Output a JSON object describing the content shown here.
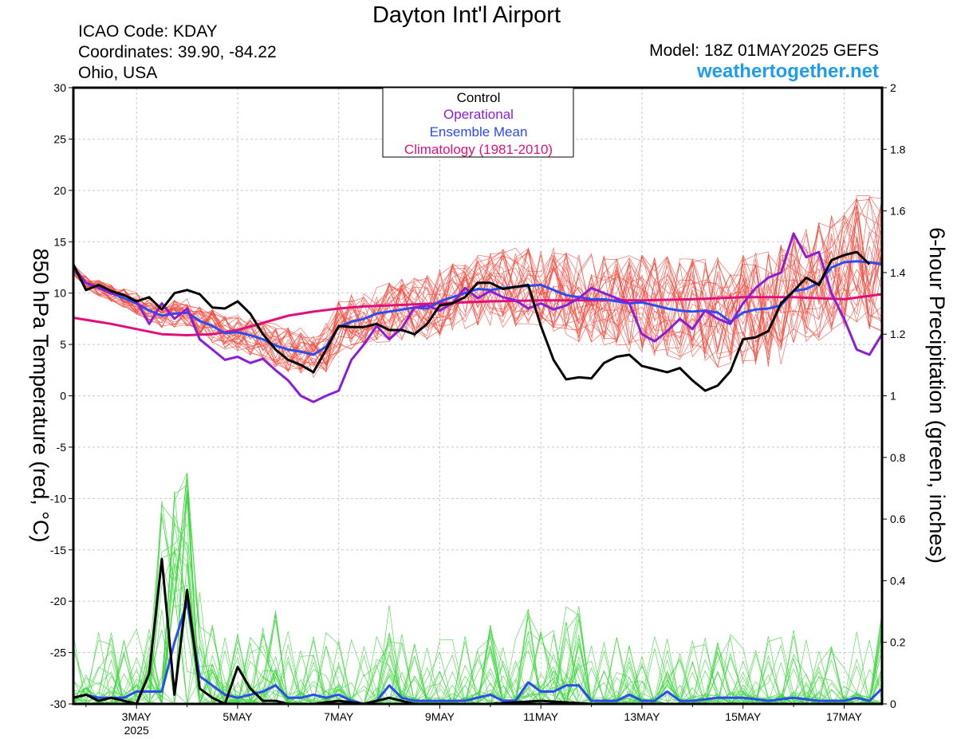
{
  "header": {
    "title": "Dayton Int'l Airport",
    "icao": "ICAO Code: KDAY",
    "coordinates": "Coordinates: 39.90, -84.22",
    "region": "Ohio, USA",
    "model": "Model: 18Z 01MAY2025 GEFS",
    "site": "weathertogether.net"
  },
  "chart_data": {
    "type": "line",
    "y_left_label": "850 hPa Temperature (red, °C)",
    "y_right_label": "6-hour Precipitation (green, inches)",
    "y_left_range": [
      -30,
      30
    ],
    "y_left_ticks": [
      "30",
      "25",
      "20",
      "15",
      "10",
      "5",
      "0",
      "-5",
      "-10",
      "-15",
      "-20",
      "-25",
      "-30"
    ],
    "y_right_range": [
      0,
      2
    ],
    "y_right_ticks": [
      "2",
      "1.8",
      "1.6",
      "1.4",
      "1.2",
      "1",
      "0.8",
      "0.6",
      "0.4",
      "0.2",
      "0"
    ],
    "x_range_days": [
      1.75,
      17.75
    ],
    "x_ticks": [
      {
        "day": 3,
        "label": "3MAY",
        "sub": "2025"
      },
      {
        "day": 5,
        "label": "5MAY"
      },
      {
        "day": 7,
        "label": "7MAY"
      },
      {
        "day": 9,
        "label": "9MAY"
      },
      {
        "day": 11,
        "label": "11MAY"
      },
      {
        "day": 13,
        "label": "13MAY"
      },
      {
        "day": 15,
        "label": "15MAY"
      },
      {
        "day": 17,
        "label": "17MAY"
      }
    ],
    "legend": {
      "placement": "top-center",
      "entries": [
        {
          "label": "Control",
          "color": "#000000"
        },
        {
          "label": "Operational",
          "color": "#8a1ed6"
        },
        {
          "label": "Ensemble Mean",
          "color": "#2a4cf0"
        },
        {
          "label": "Climatology (1981-2010)",
          "color": "#e0107a"
        }
      ]
    },
    "colors": {
      "members_temp": "#f0483c",
      "members_precip": "#3ed63e",
      "control": "#000000",
      "operational": "#8a1ed6",
      "mean": "#2a4cf0",
      "climatology": "#e0107a"
    },
    "temperature_series": {
      "control": [
        [
          1.75,
          12.8
        ],
        [
          2,
          10.3
        ],
        [
          2.25,
          10.8
        ],
        [
          2.5,
          10.2
        ],
        [
          2.75,
          9.8
        ],
        [
          3,
          9.2
        ],
        [
          3.25,
          9.6
        ],
        [
          3.5,
          8.4
        ],
        [
          3.75,
          10
        ],
        [
          4,
          10.3
        ],
        [
          4.25,
          9.9
        ],
        [
          4.5,
          8.6
        ],
        [
          4.75,
          8.5
        ],
        [
          5,
          9.2
        ],
        [
          5.25,
          8
        ],
        [
          5.5,
          6
        ],
        [
          5.75,
          4.5
        ],
        [
          6,
          3.5
        ],
        [
          6.25,
          3
        ],
        [
          6.5,
          2.3
        ],
        [
          6.75,
          4.5
        ],
        [
          7,
          6.8
        ],
        [
          7.25,
          6.7
        ],
        [
          7.5,
          6.7
        ],
        [
          7.75,
          7
        ],
        [
          8,
          6.4
        ],
        [
          8.25,
          6.4
        ],
        [
          8.5,
          6
        ],
        [
          8.75,
          7
        ],
        [
          9,
          8.8
        ],
        [
          9.25,
          9
        ],
        [
          9.5,
          9.6
        ],
        [
          9.75,
          11
        ],
        [
          10,
          11
        ],
        [
          10.25,
          10.4
        ],
        [
          10.5,
          10.6
        ],
        [
          10.75,
          10.8
        ],
        [
          11,
          6.8
        ],
        [
          11.25,
          3.5
        ],
        [
          11.5,
          1.6
        ],
        [
          11.75,
          1.8
        ],
        [
          12,
          1.7
        ],
        [
          12.25,
          3.2
        ],
        [
          12.5,
          3.8
        ],
        [
          12.75,
          4
        ],
        [
          13,
          2.9
        ],
        [
          13.25,
          2.6
        ],
        [
          13.5,
          2.3
        ],
        [
          13.75,
          2.7
        ],
        [
          14,
          1.5
        ],
        [
          14.25,
          0.5
        ],
        [
          14.5,
          1
        ],
        [
          14.75,
          2.4
        ],
        [
          15,
          5.5
        ],
        [
          15.25,
          5.7
        ],
        [
          15.5,
          6.3
        ],
        [
          15.75,
          9
        ],
        [
          16,
          10.2
        ],
        [
          16.25,
          11.5
        ],
        [
          16.5,
          10.8
        ],
        [
          16.75,
          13.2
        ],
        [
          17,
          13.7
        ],
        [
          17.25,
          14
        ],
        [
          17.5,
          12.8
        ]
      ],
      "operational": [
        [
          1.75,
          12.5
        ],
        [
          2,
          11
        ],
        [
          2.25,
          10.5
        ],
        [
          2.5,
          10
        ],
        [
          2.75,
          9.8
        ],
        [
          3,
          9.2
        ],
        [
          3.25,
          7
        ],
        [
          3.5,
          9
        ],
        [
          3.75,
          7.5
        ],
        [
          4,
          8.5
        ],
        [
          4.25,
          5.5
        ],
        [
          4.5,
          4.5
        ],
        [
          4.75,
          3.5
        ],
        [
          5,
          3.8
        ],
        [
          5.25,
          3.2
        ],
        [
          5.5,
          3.6
        ],
        [
          5.75,
          2.5
        ],
        [
          6,
          1.5
        ],
        [
          6.25,
          0
        ],
        [
          6.5,
          -0.6
        ],
        [
          6.75,
          0
        ],
        [
          7,
          0.5
        ],
        [
          7.25,
          3.5
        ],
        [
          7.5,
          5
        ],
        [
          7.75,
          6.8
        ],
        [
          8,
          5.5
        ],
        [
          8.25,
          6.6
        ],
        [
          8.5,
          8.6
        ],
        [
          8.75,
          8.8
        ],
        [
          9,
          8.3
        ],
        [
          9.25,
          9
        ],
        [
          9.5,
          10.5
        ],
        [
          9.75,
          9.5
        ],
        [
          10,
          10.2
        ],
        [
          10.25,
          9.6
        ],
        [
          10.5,
          9.3
        ],
        [
          10.75,
          8.5
        ],
        [
          11,
          9
        ],
        [
          11.25,
          8.4
        ],
        [
          11.5,
          8.8
        ],
        [
          11.75,
          9.5
        ],
        [
          12,
          10.5
        ],
        [
          12.25,
          10
        ],
        [
          12.5,
          9.5
        ],
        [
          12.75,
          9
        ],
        [
          13,
          6
        ],
        [
          13.25,
          5.3
        ],
        [
          13.5,
          6.3
        ],
        [
          13.75,
          7.5
        ],
        [
          14,
          6.5
        ],
        [
          14.25,
          8.3
        ],
        [
          14.5,
          7.5
        ],
        [
          14.75,
          7
        ],
        [
          15,
          9
        ],
        [
          15.25,
          10.5
        ],
        [
          15.5,
          11.5
        ],
        [
          15.75,
          12
        ],
        [
          16,
          15.8
        ],
        [
          16.25,
          13.5
        ],
        [
          16.5,
          14
        ],
        [
          16.75,
          10
        ],
        [
          17,
          7.5
        ],
        [
          17.25,
          4.5
        ],
        [
          17.5,
          4
        ],
        [
          17.75,
          6
        ]
      ],
      "mean": [
        [
          1.75,
          12.3
        ],
        [
          2,
          11
        ],
        [
          2.25,
          10.5
        ],
        [
          2.5,
          10
        ],
        [
          2.75,
          9.5
        ],
        [
          3,
          9
        ],
        [
          3.25,
          8.3
        ],
        [
          3.5,
          7.8
        ],
        [
          3.75,
          8
        ],
        [
          4,
          8.1
        ],
        [
          4.25,
          7.3
        ],
        [
          4.5,
          6.8
        ],
        [
          4.75,
          6.1
        ],
        [
          5,
          6.2
        ],
        [
          5.25,
          5.9
        ],
        [
          5.5,
          5.5
        ],
        [
          5.75,
          4.9
        ],
        [
          6,
          4.5
        ],
        [
          6.25,
          4.3
        ],
        [
          6.5,
          4
        ],
        [
          6.75,
          4.8
        ],
        [
          7,
          6.7
        ],
        [
          7.25,
          7.2
        ],
        [
          7.5,
          7.5
        ],
        [
          7.75,
          8
        ],
        [
          8,
          8.2
        ],
        [
          8.25,
          8.4
        ],
        [
          8.5,
          8.6
        ],
        [
          8.75,
          8.5
        ],
        [
          9,
          9.2
        ],
        [
          9.25,
          9.6
        ],
        [
          9.5,
          10
        ],
        [
          9.75,
          10.4
        ],
        [
          10,
          10.3
        ],
        [
          10.25,
          10.5
        ],
        [
          10.5,
          10.6
        ],
        [
          10.75,
          10.7
        ],
        [
          11,
          10.8
        ],
        [
          11.25,
          10.3
        ],
        [
          11.5,
          9.8
        ],
        [
          11.75,
          9.6
        ],
        [
          12,
          9.4
        ],
        [
          12.25,
          9.4
        ],
        [
          12.5,
          9.2
        ],
        [
          12.75,
          9
        ],
        [
          13,
          9.1
        ],
        [
          13.25,
          8.8
        ],
        [
          13.5,
          8.5
        ],
        [
          13.75,
          8.3
        ],
        [
          14,
          8.2
        ],
        [
          14.25,
          8.3
        ],
        [
          14.5,
          8.1
        ],
        [
          14.75,
          7.2
        ],
        [
          15,
          8.1
        ],
        [
          15.25,
          8.4
        ],
        [
          15.5,
          8.5
        ],
        [
          15.75,
          8.8
        ],
        [
          16,
          10.2
        ],
        [
          16.25,
          10.4
        ],
        [
          16.5,
          11
        ],
        [
          16.75,
          12.5
        ],
        [
          17,
          13
        ],
        [
          17.25,
          13.1
        ],
        [
          17.5,
          13
        ],
        [
          17.75,
          12.8
        ]
      ],
      "climatology": [
        [
          1.75,
          7.6
        ],
        [
          2.5,
          7
        ],
        [
          3,
          6.5
        ],
        [
          3.5,
          6
        ],
        [
          4,
          5.9
        ],
        [
          4.5,
          6
        ],
        [
          5,
          6.4
        ],
        [
          5.5,
          7.1
        ],
        [
          6,
          7.8
        ],
        [
          6.5,
          8.2
        ],
        [
          7,
          8.5
        ],
        [
          7.5,
          8.7
        ],
        [
          8,
          8.8
        ],
        [
          8.5,
          8.9
        ],
        [
          9,
          9
        ],
        [
          10,
          9.2
        ],
        [
          11,
          9.3
        ],
        [
          12,
          9.3
        ],
        [
          13,
          9.3
        ],
        [
          14,
          9.4
        ],
        [
          15,
          9.6
        ],
        [
          16,
          9.6
        ],
        [
          16.5,
          9.5
        ],
        [
          17,
          9.4
        ],
        [
          17.75,
          9.9
        ]
      ]
    },
    "precip_series": {
      "control": [
        [
          1.75,
          0.02
        ],
        [
          2,
          0.03
        ],
        [
          2.25,
          0.01
        ],
        [
          2.5,
          0.02
        ],
        [
          2.75,
          0.01
        ],
        [
          3,
          0
        ],
        [
          3.25,
          0.1
        ],
        [
          3.5,
          0.47
        ],
        [
          3.75,
          0.03
        ],
        [
          4,
          0.37
        ],
        [
          4.25,
          0.05
        ],
        [
          4.5,
          0.02
        ],
        [
          4.75,
          0
        ],
        [
          5,
          0.12
        ],
        [
          5.25,
          0.05
        ],
        [
          5.5,
          0.01
        ],
        [
          5.75,
          0.01
        ],
        [
          6,
          0
        ],
        [
          6.5,
          0
        ],
        [
          7,
          0.01
        ],
        [
          7.5,
          0
        ],
        [
          8,
          0.02
        ],
        [
          8.5,
          0
        ],
        [
          9,
          0
        ],
        [
          10,
          0
        ],
        [
          11,
          0.01
        ],
        [
          12,
          0
        ],
        [
          13,
          0
        ],
        [
          14,
          0
        ],
        [
          15,
          0
        ],
        [
          16,
          0
        ],
        [
          17,
          0
        ],
        [
          17.75,
          0
        ]
      ],
      "mean": [
        [
          1.75,
          0.02
        ],
        [
          2,
          0.03
        ],
        [
          2.25,
          0.02
        ],
        [
          2.5,
          0.02
        ],
        [
          2.75,
          0.02
        ],
        [
          3,
          0.04
        ],
        [
          3.25,
          0.04
        ],
        [
          3.5,
          0.04
        ],
        [
          3.75,
          0.2
        ],
        [
          4,
          0.33
        ],
        [
          4.25,
          0.09
        ],
        [
          4.5,
          0.06
        ],
        [
          4.75,
          0.03
        ],
        [
          5,
          0.02
        ],
        [
          5.25,
          0.03
        ],
        [
          5.5,
          0.04
        ],
        [
          5.75,
          0.06
        ],
        [
          6,
          0.02
        ],
        [
          6.25,
          0.02
        ],
        [
          6.5,
          0.03
        ],
        [
          6.75,
          0.02
        ],
        [
          7,
          0.03
        ],
        [
          7.25,
          0.01
        ],
        [
          7.5,
          0
        ],
        [
          7.75,
          0.01
        ],
        [
          8,
          0.06
        ],
        [
          8.25,
          0.02
        ],
        [
          8.5,
          0.01
        ],
        [
          9,
          0.01
        ],
        [
          9.5,
          0.01
        ],
        [
          10,
          0.03
        ],
        [
          10.25,
          0.01
        ],
        [
          10.5,
          0.01
        ],
        [
          10.75,
          0.07
        ],
        [
          11,
          0.04
        ],
        [
          11.25,
          0.04
        ],
        [
          11.5,
          0.06
        ],
        [
          11.75,
          0.06
        ],
        [
          12,
          0.01
        ],
        [
          12.25,
          0.01
        ],
        [
          12.5,
          0.01
        ],
        [
          12.75,
          0.03
        ],
        [
          13,
          0.01
        ],
        [
          13.25,
          0.01
        ],
        [
          13.5,
          0.04
        ],
        [
          13.75,
          0.01
        ],
        [
          14,
          0.01
        ],
        [
          14.5,
          0.02
        ],
        [
          15,
          0.02
        ],
        [
          15.5,
          0.01
        ],
        [
          16,
          0.02
        ],
        [
          16.5,
          0.01
        ],
        [
          17,
          0.01
        ],
        [
          17.25,
          0.02
        ],
        [
          17.5,
          0.01
        ],
        [
          17.75,
          0.05
        ]
      ]
    }
  }
}
